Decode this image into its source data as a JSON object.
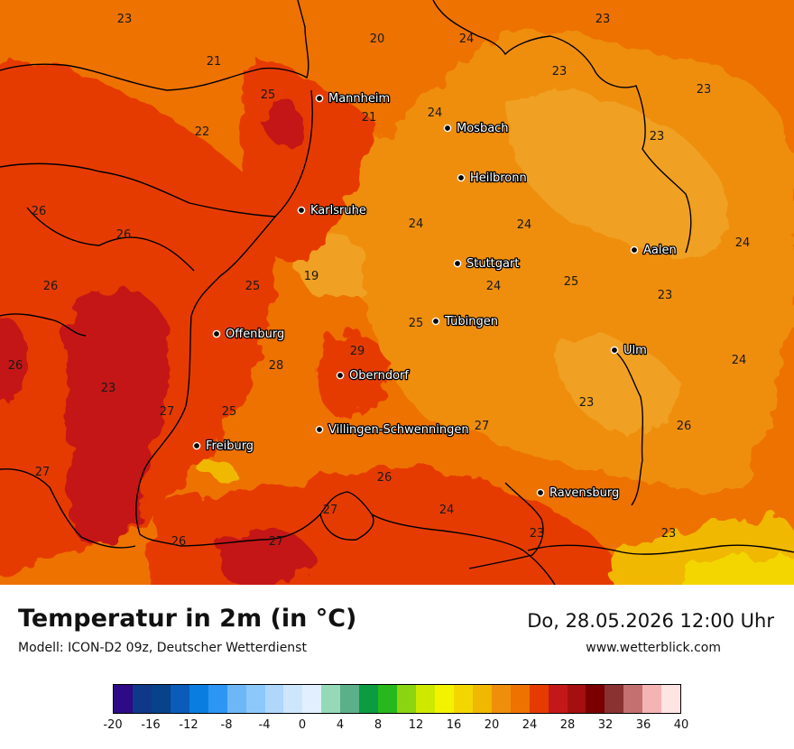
{
  "map": {
    "cities": [
      {
        "name": "Mannheim"
      },
      {
        "name": "Mosbach"
      },
      {
        "name": "Heilbronn"
      },
      {
        "name": "Karlsruhe"
      },
      {
        "name": "Stuttgart"
      },
      {
        "name": "Aalen"
      },
      {
        "name": "Tübingen"
      },
      {
        "name": "Offenburg"
      },
      {
        "name": "Ulm"
      },
      {
        "name": "Oberndorf"
      },
      {
        "name": "Villingen-Schwenningen"
      },
      {
        "name": "Freiburg"
      },
      {
        "name": "Ravensburg"
      }
    ],
    "values": [
      "23",
      "20",
      "24",
      "23",
      "21",
      "23",
      "23",
      "25",
      "21",
      "24",
      "22",
      "23",
      "26",
      "26",
      "24",
      "24",
      "24",
      "26",
      "25",
      "19",
      "24",
      "23",
      "25",
      "25",
      "29",
      "26",
      "28",
      "23",
      "24",
      "27",
      "25",
      "23",
      "27",
      "26",
      "27",
      "26",
      "27",
      "24",
      "26",
      "27",
      "23",
      "23"
    ],
    "colors": {
      "border": "#000000",
      "dot": "#000000"
    }
  },
  "footer": {
    "title": "Temperatur in 2m (in °C)",
    "model": "Modell: ICON-D2 09z, Deutscher Wetterdienst",
    "datetime": "Do, 28.05.2026 12:00 Uhr",
    "website": "www.wetterblick.com"
  },
  "legend": {
    "colors": [
      "#2e0a84",
      "#10388a",
      "#07428a",
      "#0a5cb8",
      "#0a7ee0",
      "#2c96f2",
      "#6db7f7",
      "#8dc8fa",
      "#aed7fb",
      "#cde6fc",
      "#e1efff",
      "#96d9b8",
      "#5bb08a",
      "#0c9b40",
      "#26b81c",
      "#8ad412",
      "#cfe800",
      "#f3f300",
      "#f3d600",
      "#f0b800",
      "#ef8e0a",
      "#ee7200",
      "#e63b00",
      "#c41818",
      "#a50f0f",
      "#7a0000",
      "#8a3232",
      "#c47070",
      "#f4b4b4",
      "#ffe4e4"
    ],
    "ticks": [
      "-20",
      "-16",
      "-12",
      "-8",
      "-4",
      "0",
      "4",
      "8",
      "12",
      "16",
      "20",
      "24",
      "28",
      "32",
      "36",
      "40"
    ]
  }
}
